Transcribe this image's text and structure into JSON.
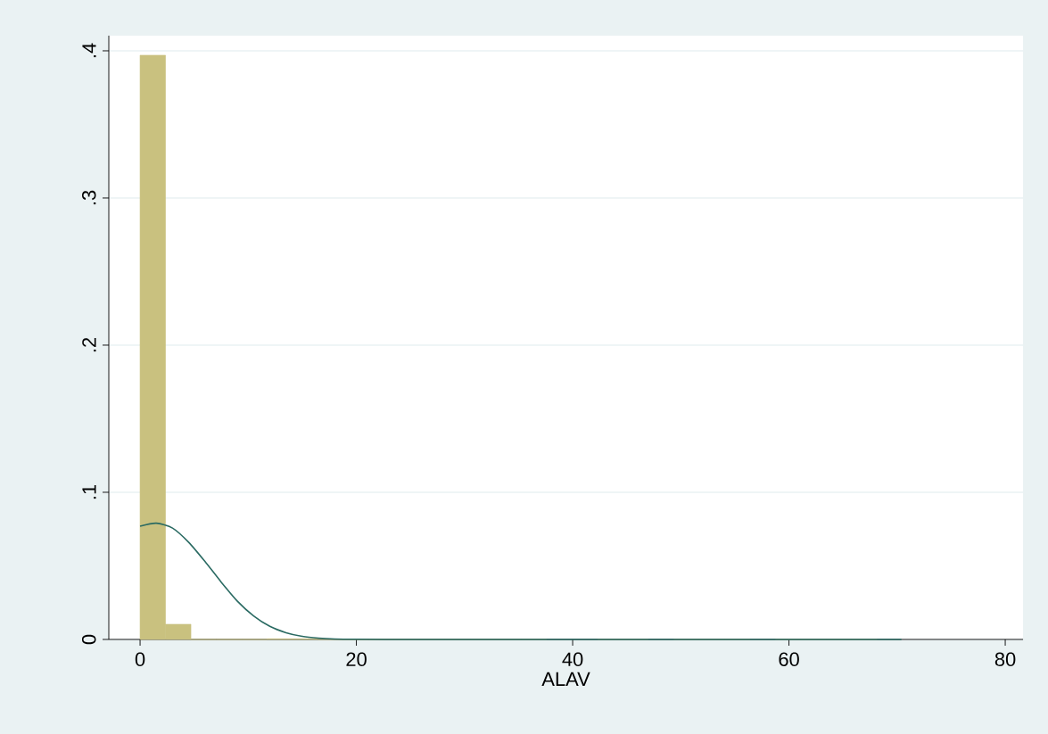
{
  "chart_data": {
    "type": "histogram",
    "xlabel": "ALAV",
    "bins": [
      0,
      2.35,
      4.7,
      7.05,
      9.4,
      11.75,
      14.1,
      16.45,
      18.8,
      21.15,
      23.5,
      25.85,
      28.2,
      30.55,
      32.9,
      35.25,
      37.6,
      39.95,
      42.3,
      44.65,
      47,
      49.35,
      51.7,
      54.05,
      56.4,
      58.75,
      61.1,
      63.45,
      65.8,
      68.15,
      70.5
    ],
    "values": [
      0.397,
      0.0103,
      0,
      0,
      0,
      0.0004,
      0.0004,
      0,
      0,
      0,
      0,
      0,
      0,
      0,
      0,
      0,
      null,
      null,
      0,
      0,
      null,
      0,
      0,
      0,
      null,
      0,
      0,
      0,
      0,
      null
    ],
    "color": "#c9c17f",
    "series": [
      {
        "type": "line",
        "color": "#2a6a62",
        "x": [
          0,
          1.5,
          3,
          4.5,
          6,
          7.5,
          9,
          10.5,
          12,
          13.5,
          15,
          16.5,
          18,
          20,
          25,
          30,
          40,
          50,
          60,
          70.4
        ],
        "values": [
          0.077,
          0.079,
          0.0757,
          0.066,
          0.053,
          0.039,
          0.026,
          0.016,
          0.0089,
          0.0046,
          0.0021,
          0.0009,
          0.0003,
          0.0001,
          0,
          0,
          0,
          0,
          0,
          0
        ]
      }
    ],
    "xlim": [
      -2.89,
      81.65
    ],
    "ylim": [
      0,
      0.4103
    ],
    "xticks": [
      0,
      20,
      40,
      60,
      80
    ],
    "yticks": [
      0,
      {
        "value": 0.1,
        "label": ".1"
      },
      {
        "value": 0.2,
        "label": ".2"
      },
      {
        "value": 0.3,
        "label": ".3"
      },
      {
        "value": 0.4,
        "label": ".4"
      }
    ],
    "grid": "y"
  }
}
